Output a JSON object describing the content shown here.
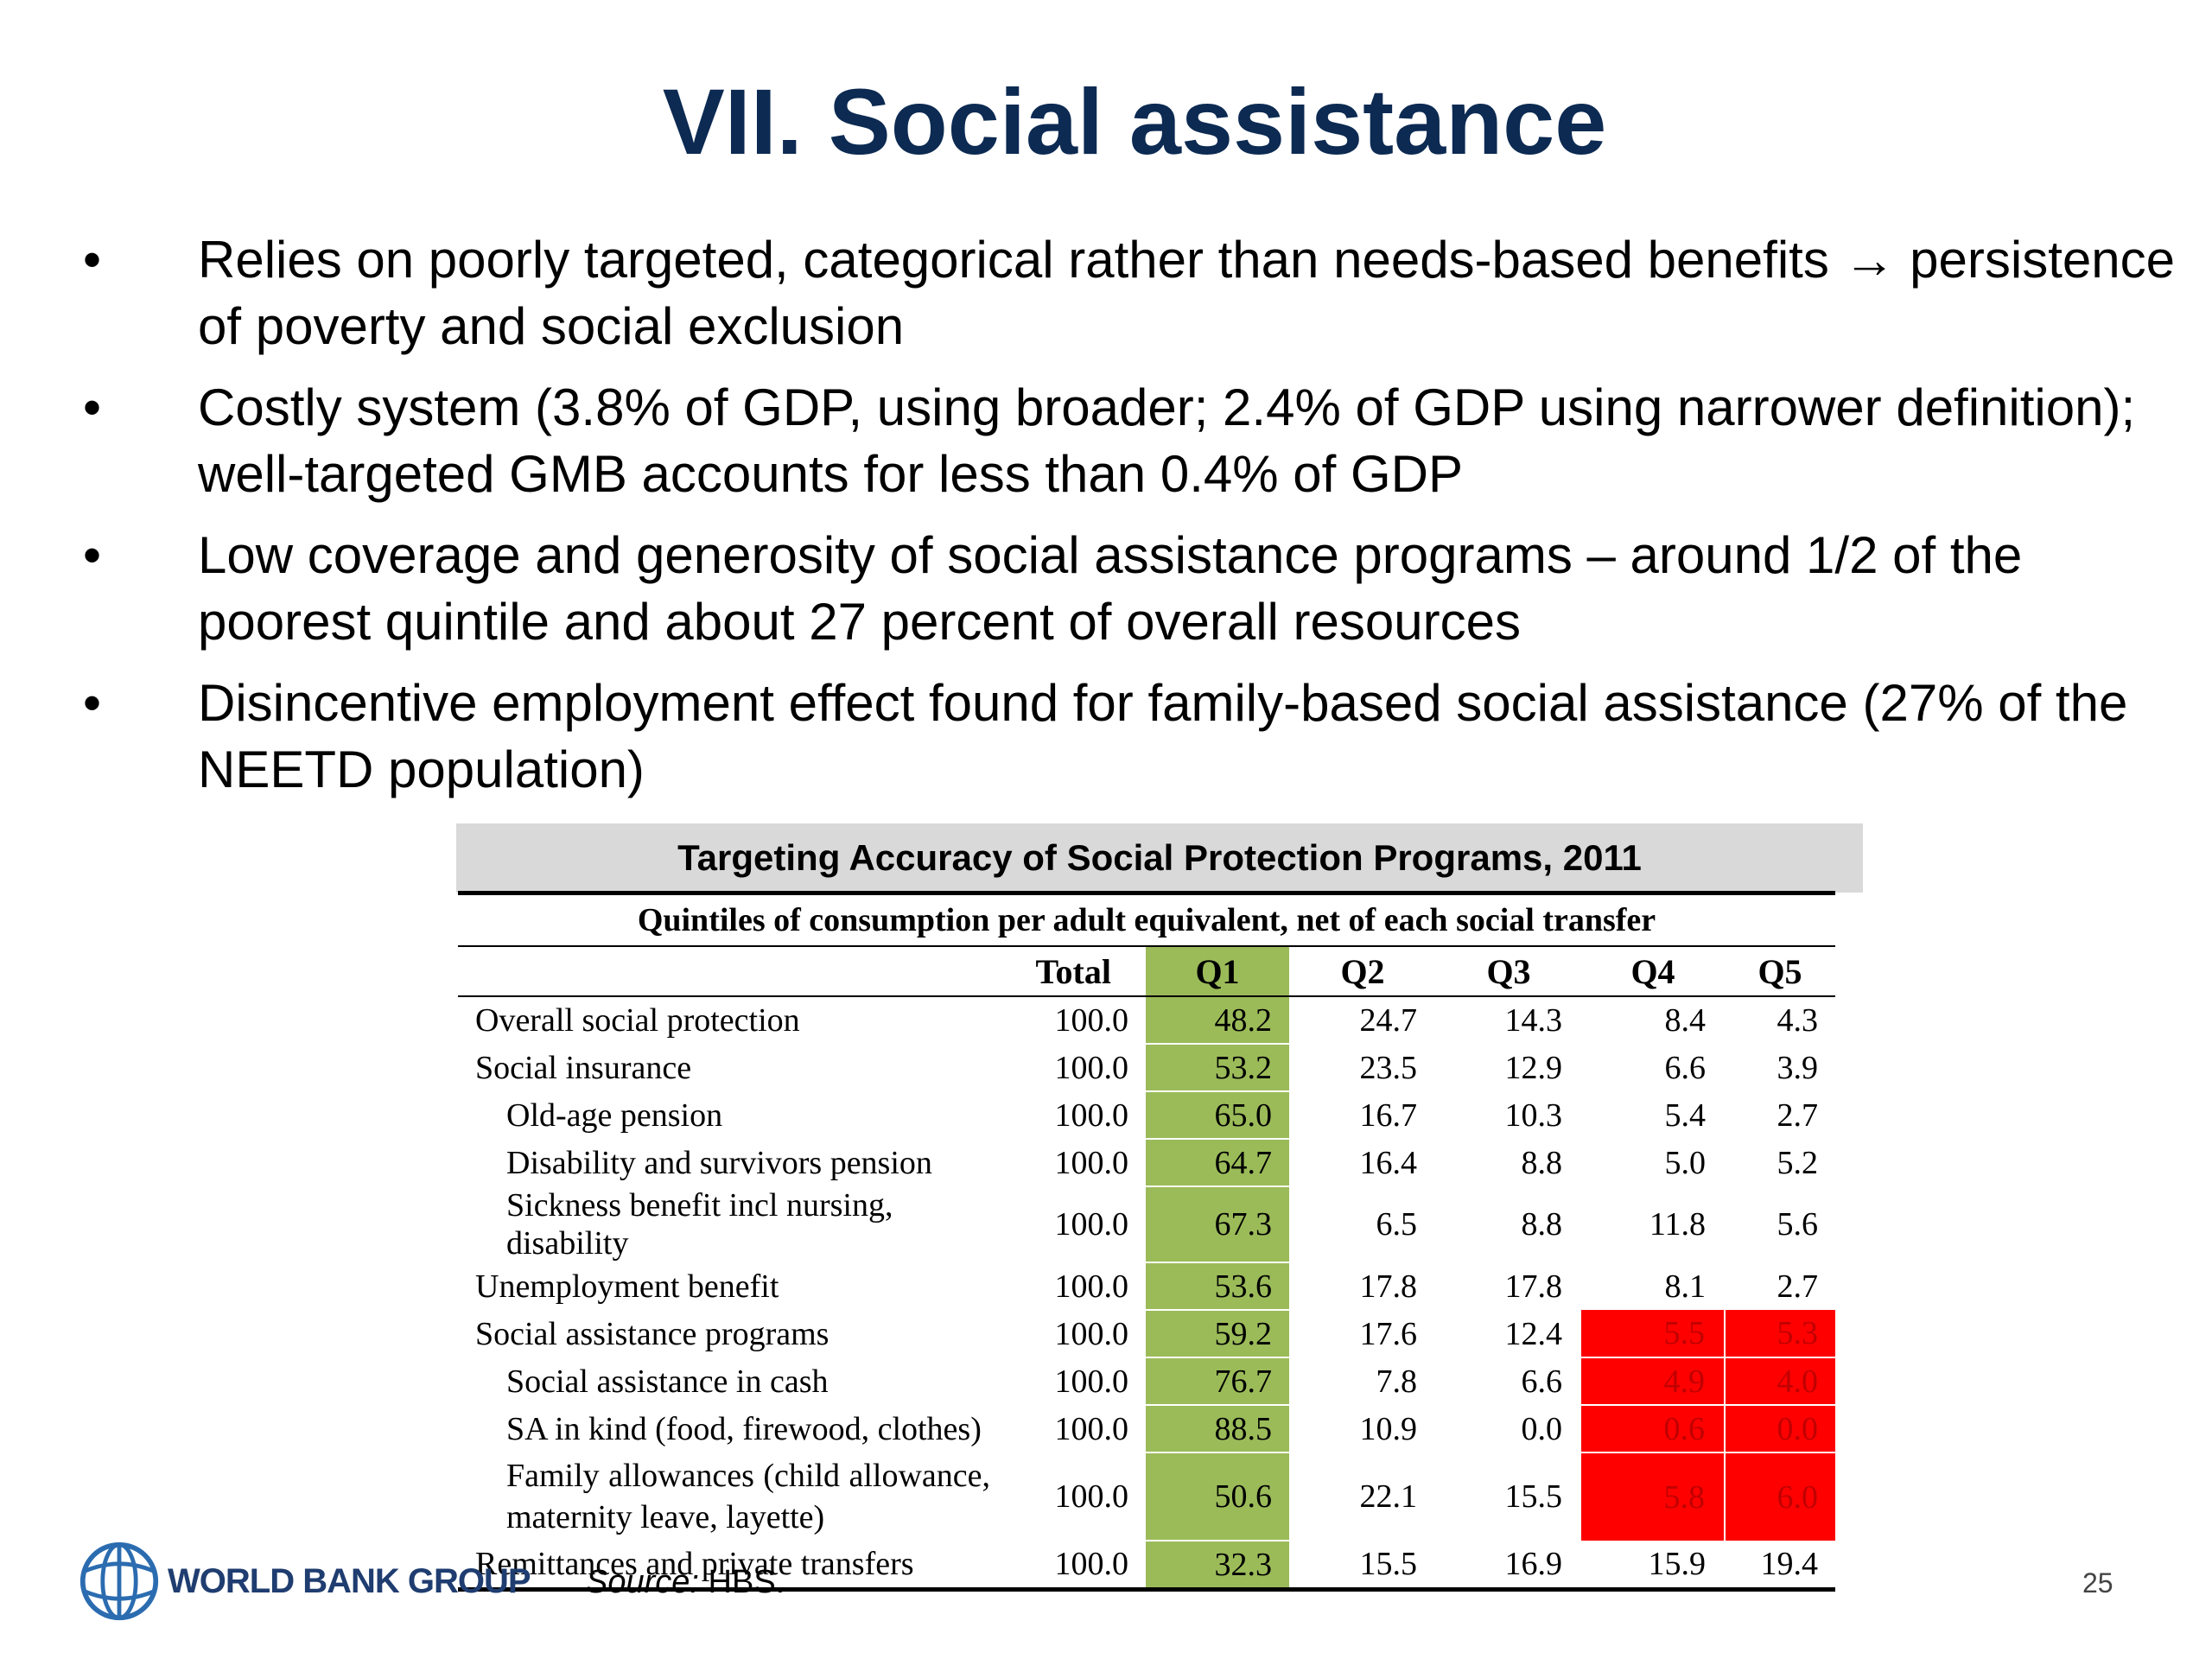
{
  "title": "VII. Social assistance",
  "bullets": [
    "Relies on poorly targeted, categorical rather than needs-based benefits → persistence of poverty and social exclusion",
    "Costly system (3.8% of GDP, using broader; 2.4% of GDP using narrower definition); well-targeted GMB accounts for less than 0.4% of GDP",
    "Low coverage and generosity of social assistance programs – around 1/2 of the poorest quintile and about 27 percent of overall resources",
    "Disincentive employment effect found for family-based social assistance (27% of the NEETD population)"
  ],
  "bullet_symbol": "•",
  "table": {
    "title": "Targeting Accuracy of Social Protection Programs, 2011",
    "subtitle": "Quintiles of consumption per adult equivalent, net of each social transfer",
    "columns": [
      "Total",
      "Q1",
      "Q2",
      "Q3",
      "Q4",
      "Q5"
    ],
    "rows": [
      {
        "label": "Overall social protection",
        "values": [
          "100.0",
          "48.2",
          "24.7",
          "14.3",
          "8.4",
          "4.3"
        ]
      },
      {
        "label": "Social insurance",
        "values": [
          "100.0",
          "53.2",
          "23.5",
          "12.9",
          "6.6",
          "3.9"
        ]
      },
      {
        "label": "Old-age pension",
        "values": [
          "100.0",
          "65.0",
          "16.7",
          "10.3",
          "5.4",
          "2.7"
        ]
      },
      {
        "label": "Disability and survivors pension",
        "values": [
          "100.0",
          "64.7",
          "16.4",
          "8.8",
          "5.0",
          "5.2"
        ]
      },
      {
        "label": "Sickness benefit incl nursing, disability",
        "values": [
          "100.0",
          "67.3",
          "6.5",
          "8.8",
          "11.8",
          "5.6"
        ]
      },
      {
        "label": "Unemployment benefit",
        "values": [
          "100.0",
          "53.6",
          "17.8",
          "17.8",
          "8.1",
          "2.7"
        ]
      },
      {
        "label": "Social assistance programs",
        "values": [
          "100.0",
          "59.2",
          "17.6",
          "12.4",
          "5.5",
          "5.3"
        ]
      },
      {
        "label": "Social assistance in cash",
        "values": [
          "100.0",
          "76.7",
          "7.8",
          "6.6",
          "4.9",
          "4.0"
        ]
      },
      {
        "label": "SA in kind (food, firewood, clothes)",
        "values": [
          "100.0",
          "88.5",
          "10.9",
          "0.0",
          "0.6",
          "0.0"
        ]
      },
      {
        "label": "Family allowances (child allowance, maternity leave, layette)",
        "values": [
          "100.0",
          "50.6",
          "22.1",
          "15.5",
          "5.8",
          "6.0"
        ]
      },
      {
        "label": "Remittances and private transfers",
        "values": [
          "100.0",
          "32.3",
          "15.5",
          "16.9",
          "15.9",
          "19.4"
        ]
      }
    ],
    "highlight_q1_color": "#9bbb59",
    "highlight_red_color": "#ff0000"
  },
  "footer": {
    "logo_text": "WORLD BANK GROUP",
    "source_label": "Source:",
    "source_value": " HBS.",
    "page_number": "25"
  }
}
